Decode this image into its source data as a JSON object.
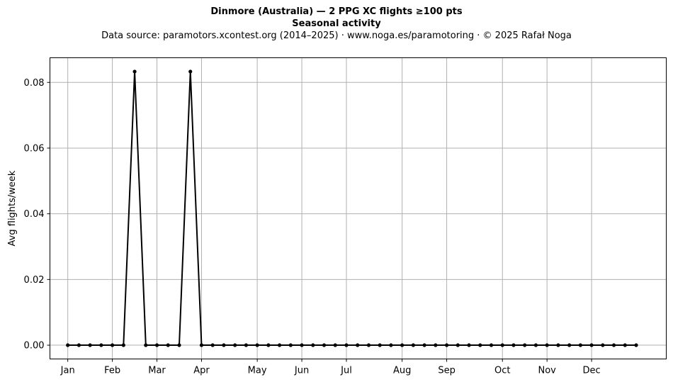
{
  "header": {
    "title": "Dinmore (Australia)  —  2 PPG XC flights ≥100 pts",
    "subtitle": "Seasonal activity",
    "source": "Data source: paramotors.xcontest.org (2014–2025)  ·  www.noga.es/paramotoring  ·  © 2025 Rafał Noga"
  },
  "chart_data": {
    "type": "line",
    "title": "Dinmore (Australia)  —  2 PPG XC flights ≥100 pts",
    "subtitle": "Seasonal activity",
    "xlabel": "",
    "ylabel": "Avg flights/week",
    "x_unit": "week of year",
    "x_ticks": [
      {
        "label": "Jan",
        "week": 1
      },
      {
        "label": "Feb",
        "week": 5
      },
      {
        "label": "Mar",
        "week": 9
      },
      {
        "label": "Apr",
        "week": 13
      },
      {
        "label": "May",
        "week": 18
      },
      {
        "label": "Jun",
        "week": 22
      },
      {
        "label": "Jul",
        "week": 26
      },
      {
        "label": "Aug",
        "week": 31
      },
      {
        "label": "Sep",
        "week": 35
      },
      {
        "label": "Oct",
        "week": 40
      },
      {
        "label": "Nov",
        "week": 44
      },
      {
        "label": "Dec",
        "week": 48
      }
    ],
    "y_ticks": [
      0.0,
      0.02,
      0.04,
      0.06,
      0.08
    ],
    "y_tick_labels": [
      "0.00",
      "0.02",
      "0.04",
      "0.06",
      "0.08"
    ],
    "xlim": [
      -0.6,
      54.7
    ],
    "ylim": [
      -0.0042,
      0.0875
    ],
    "grid": true,
    "series": [
      {
        "color": "#000000",
        "marker": "circle",
        "x": [
          1,
          2,
          3,
          4,
          5,
          6,
          7,
          8,
          9,
          10,
          11,
          12,
          13,
          14,
          15,
          16,
          17,
          18,
          19,
          20,
          21,
          22,
          23,
          24,
          25,
          26,
          27,
          28,
          29,
          30,
          31,
          32,
          33,
          34,
          35,
          36,
          37,
          38,
          39,
          40,
          41,
          42,
          43,
          44,
          45,
          46,
          47,
          48,
          49,
          50,
          51,
          52
        ],
        "values": [
          0,
          0,
          0,
          0,
          0,
          0,
          0.0833,
          0,
          0,
          0,
          0,
          0.0833,
          0,
          0,
          0,
          0,
          0,
          0,
          0,
          0,
          0,
          0,
          0,
          0,
          0,
          0,
          0,
          0,
          0,
          0,
          0,
          0,
          0,
          0,
          0,
          0,
          0,
          0,
          0,
          0,
          0,
          0,
          0,
          0,
          0,
          0,
          0,
          0,
          0,
          0,
          0,
          0
        ]
      }
    ]
  }
}
